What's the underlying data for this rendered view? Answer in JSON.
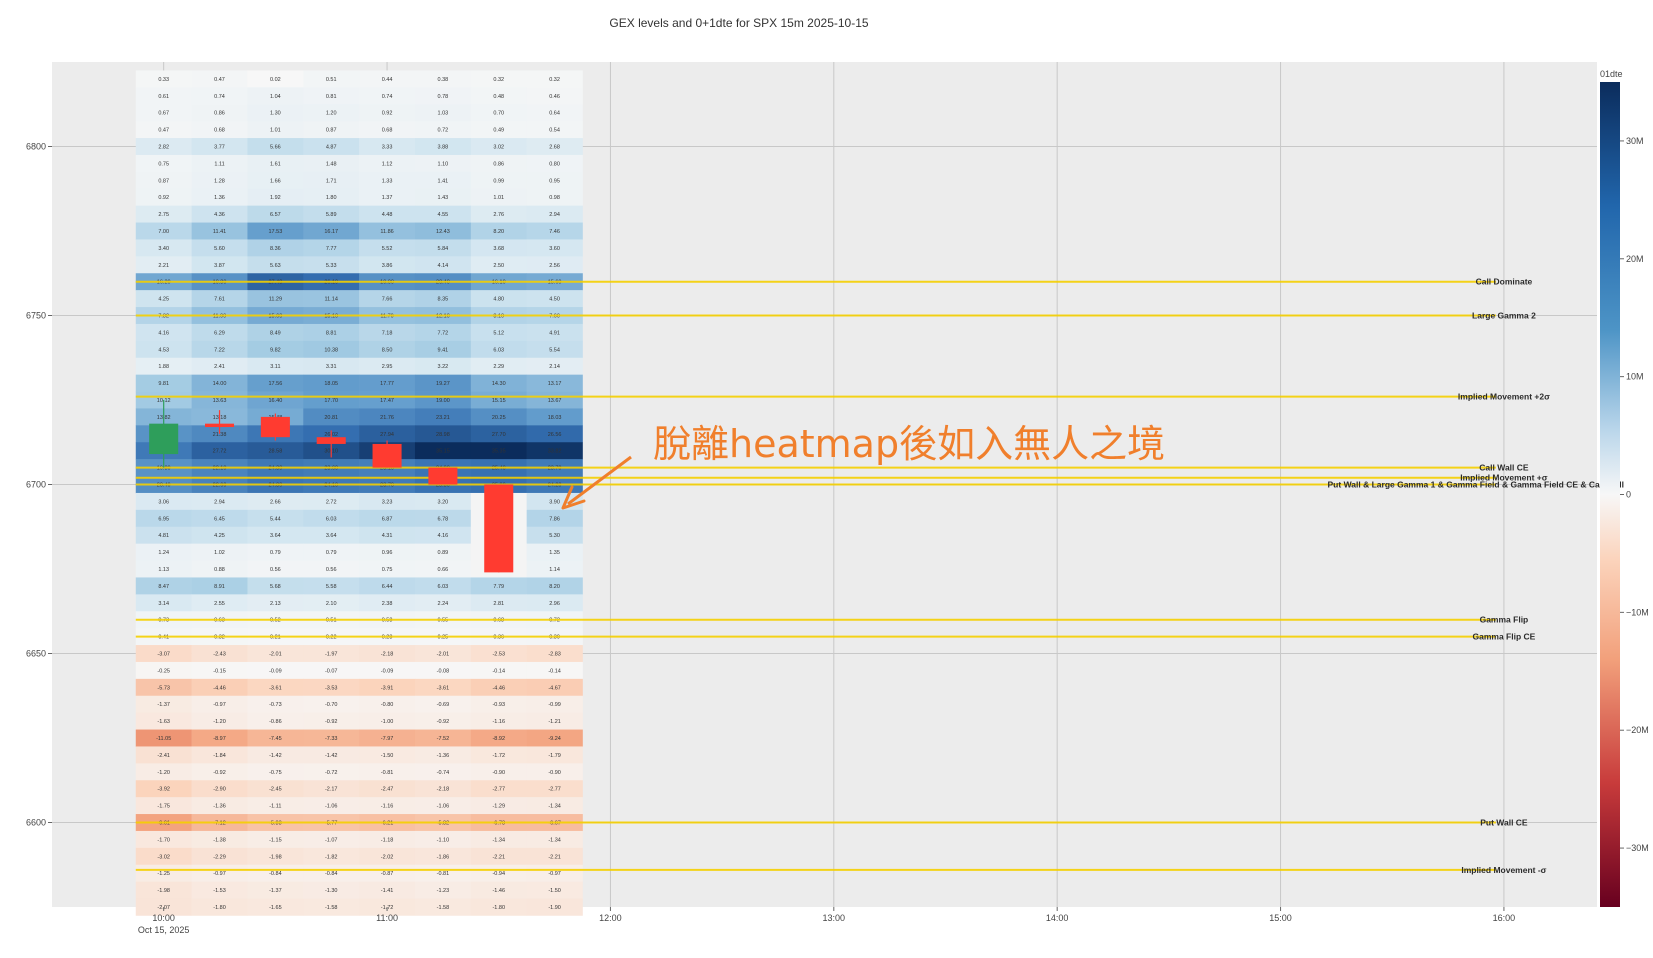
{
  "chart_data": {
    "type": "heatmap",
    "title": "GEX levels and 0+1dte for SPX 15m 2025-10-15",
    "ylim": [
      6575,
      6825
    ],
    "xlim": [
      "09:30",
      "16:25"
    ],
    "x_ticks": [
      {
        "time": "10:00",
        "label": "10:00",
        "sublabel": "Oct 15, 2025"
      },
      {
        "time": "11:00",
        "label": "11:00",
        "sublabel": ""
      },
      {
        "time": "12:00",
        "label": "12:00",
        "sublabel": ""
      },
      {
        "time": "13:00",
        "label": "13:00",
        "sublabel": ""
      },
      {
        "time": "14:00",
        "label": "14:00",
        "sublabel": ""
      },
      {
        "time": "15:00",
        "label": "15:00",
        "sublabel": ""
      },
      {
        "time": "16:00",
        "label": "16:00",
        "sublabel": ""
      }
    ],
    "y_ticks": [
      "6600",
      "6650",
      "6700",
      "6750",
      "6800"
    ],
    "grid": true,
    "colorbar": {
      "title": "01dte",
      "range": [
        -35,
        35
      ],
      "unit": "M",
      "ticks": [
        {
          "value": 30,
          "label": "30M"
        },
        {
          "value": 20,
          "label": "20M"
        },
        {
          "value": 10,
          "label": "10M"
        },
        {
          "value": 0,
          "label": "0"
        },
        {
          "value": -10,
          "label": "−10M"
        },
        {
          "value": -20,
          "label": "−20M"
        },
        {
          "value": -30,
          "label": "−30M"
        }
      ]
    },
    "heatmap_x": [
      "10:00",
      "10:15",
      "10:30",
      "10:45",
      "11:00",
      "11:15",
      "11:30",
      "11:45"
    ],
    "heatmap_rows": [
      {
        "strike": 6820,
        "values": [
          "0.33",
          "0.47",
          "0.02",
          "0.51",
          "0.44",
          "0.38",
          "0.32",
          "0.32"
        ]
      },
      {
        "strike": 6815,
        "values": [
          "0.61",
          "0.74",
          "1.04",
          "0.81",
          "0.74",
          "0.78",
          "0.48",
          "0.46"
        ]
      },
      {
        "strike": 6810,
        "values": [
          "0.67",
          "0.86",
          "1.30",
          "1.20",
          "0.92",
          "1.03",
          "0.70",
          "0.64"
        ]
      },
      {
        "strike": 6805,
        "values": [
          "0.47",
          "0.68",
          "1.01",
          "0.87",
          "0.68",
          "0.72",
          "0.49",
          "0.54"
        ]
      },
      {
        "strike": 6800,
        "values": [
          "2.82",
          "3.77",
          "5.66",
          "4.87",
          "3.33",
          "3.88",
          "3.02",
          "2.68"
        ]
      },
      {
        "strike": 6795,
        "values": [
          "0.75",
          "1.11",
          "1.61",
          "1.48",
          "1.12",
          "1.10",
          "0.86",
          "0.80"
        ]
      },
      {
        "strike": 6790,
        "values": [
          "0.87",
          "1.28",
          "1.66",
          "1.71",
          "1.33",
          "1.41",
          "0.99",
          "0.95"
        ]
      },
      {
        "strike": 6785,
        "values": [
          "0.92",
          "1.36",
          "1.92",
          "1.80",
          "1.37",
          "1.43",
          "1.01",
          "0.98"
        ]
      },
      {
        "strike": 6780,
        "values": [
          "2.75",
          "4.36",
          "6.57",
          "5.89",
          "4.48",
          "4.55",
          "2.76",
          "2.94"
        ]
      },
      {
        "strike": 6775,
        "values": [
          "7.00",
          "11.41",
          "17.53",
          "16.17",
          "11.86",
          "12.43",
          "8.20",
          "7.46"
        ]
      },
      {
        "strike": 6770,
        "values": [
          "3.40",
          "5.60",
          "8.36",
          "7.77",
          "5.52",
          "5.84",
          "3.68",
          "3.60"
        ]
      },
      {
        "strike": 6765,
        "values": [
          "2.21",
          "3.87",
          "5.63",
          "5.33",
          "3.86",
          "4.14",
          "2.50",
          "2.56"
        ]
      },
      {
        "strike": 6760,
        "values": [
          "16.20",
          "19.80",
          "27.40",
          "26.10",
          "19.90",
          "20.40",
          "16.10",
          "15.60"
        ]
      },
      {
        "strike": 6755,
        "values": [
          "4.25",
          "7.61",
          "11.29",
          "11.14",
          "7.66",
          "8.35",
          "4.80",
          "4.50"
        ]
      },
      {
        "strike": 6750,
        "values": [
          "7.82",
          "11.90",
          "15.60",
          "15.10",
          "11.70",
          "12.10",
          "8.10",
          "7.60"
        ]
      },
      {
        "strike": 6745,
        "values": [
          "4.16",
          "6.29",
          "8.49",
          "8.81",
          "7.18",
          "7.72",
          "5.12",
          "4.91"
        ]
      },
      {
        "strike": 6740,
        "values": [
          "4.53",
          "7.22",
          "9.82",
          "10.38",
          "8.50",
          "9.41",
          "6.03",
          "5.54"
        ]
      },
      {
        "strike": 6735,
        "values": [
          "1.88",
          "2.41",
          "3.11",
          "3.31",
          "2.95",
          "3.22",
          "2.29",
          "2.14"
        ]
      },
      {
        "strike": 6730,
        "values": [
          "9.81",
          "14.00",
          "17.56",
          "18.05",
          "17.77",
          "19.27",
          "14.30",
          "13.17"
        ]
      },
      {
        "strike": 6725,
        "values": [
          "10.12",
          "13.63",
          "16.40",
          "17.70",
          "17.47",
          "19.00",
          "15.15",
          "13.67"
        ]
      },
      {
        "strike": 6720,
        "values": [
          "13.82",
          "13.18",
          "15.48",
          "20.81",
          "21.76",
          "23.21",
          "20.25",
          "18.03"
        ]
      },
      {
        "strike": 6715,
        "values": [
          "19.60",
          "21.38",
          "24.48",
          "26.02",
          "27.94",
          "28.98",
          "27.70",
          "26.56"
        ]
      },
      {
        "strike": 6710,
        "values": [
          "24.10",
          "27.72",
          "28.58",
          "30.10",
          "32.40",
          "35.15",
          "35.35",
          "33.82"
        ]
      },
      {
        "strike": 6705,
        "values": [
          "19.80",
          "22.10",
          "24.30",
          "23.60",
          "23.10",
          "24.90",
          "25.40",
          "23.70"
        ]
      },
      {
        "strike": 6700,
        "values": [
          "20.40",
          "22.60",
          "24.80",
          "24.10",
          "23.70",
          "25.30",
          "25.90",
          "24.20"
        ]
      },
      {
        "strike": 6695,
        "values": [
          "3.06",
          "2.94",
          "2.66",
          "2.72",
          "3.23",
          "3.20",
          "",
          "3.90"
        ]
      },
      {
        "strike": 6690,
        "values": [
          "6.95",
          "6.45",
          "5.44",
          "6.03",
          "6.87",
          "6.78",
          "",
          "7.86"
        ]
      },
      {
        "strike": 6685,
        "values": [
          "4.81",
          "4.25",
          "3.64",
          "3.64",
          "4.31",
          "4.16",
          "",
          "5.30"
        ]
      },
      {
        "strike": 6680,
        "values": [
          "1.24",
          "1.02",
          "0.79",
          "0.79",
          "0.96",
          "0.89",
          "",
          "1.35"
        ]
      },
      {
        "strike": 6675,
        "values": [
          "1.13",
          "0.88",
          "0.56",
          "0.56",
          "0.75",
          "0.66",
          "",
          "1.14"
        ]
      },
      {
        "strike": 6670,
        "values": [
          "8.47",
          "8.91",
          "5.68",
          "5.58",
          "6.44",
          "6.03",
          "7.79",
          "8.20"
        ]
      },
      {
        "strike": 6665,
        "values": [
          "3.14",
          "2.55",
          "2.13",
          "2.10",
          "2.38",
          "2.24",
          "2.81",
          "2.96"
        ]
      },
      {
        "strike": 6660,
        "values": [
          "0.73",
          "0.63",
          "0.52",
          "0.51",
          "0.58",
          "0.55",
          "0.68",
          "0.72"
        ]
      },
      {
        "strike": 6655,
        "values": [
          "0.41",
          "0.32",
          "0.21",
          "0.22",
          "0.28",
          "0.25",
          "0.36",
          "0.39"
        ]
      },
      {
        "strike": 6650,
        "values": [
          "-3.07",
          "-2.43",
          "-2.01",
          "-1.97",
          "-2.18",
          "-2.01",
          "-2.53",
          "-2.83"
        ]
      },
      {
        "strike": 6645,
        "values": [
          "-0.25",
          "-0.15",
          "-0.09",
          "-0.07",
          "-0.09",
          "-0.08",
          "-0.14",
          "-0.14"
        ]
      },
      {
        "strike": 6640,
        "values": [
          "-5.73",
          "-4.46",
          "-3.61",
          "-3.53",
          "-3.91",
          "-3.61",
          "-4.46",
          "-4.67"
        ]
      },
      {
        "strike": 6635,
        "values": [
          "-1.37",
          "-0.97",
          "-0.73",
          "-0.70",
          "-0.80",
          "-0.69",
          "-0.93",
          "-0.99"
        ]
      },
      {
        "strike": 6630,
        "values": [
          "-1.63",
          "-1.20",
          "-0.86",
          "-0.92",
          "-1.00",
          "-0.92",
          "-1.16",
          "-1.21"
        ]
      },
      {
        "strike": 6625,
        "values": [
          "-11.05",
          "-8.97",
          "-7.45",
          "-7.33",
          "-7.97",
          "-7.52",
          "-8.92",
          "-9.24"
        ]
      },
      {
        "strike": 6620,
        "values": [
          "-2.41",
          "-1.84",
          "-1.42",
          "-1.42",
          "-1.50",
          "-1.36",
          "-1.72",
          "-1.79"
        ]
      },
      {
        "strike": 6615,
        "values": [
          "-1.20",
          "-0.92",
          "-0.75",
          "-0.72",
          "-0.81",
          "-0.74",
          "-0.90",
          "-0.90"
        ]
      },
      {
        "strike": 6610,
        "values": [
          "-3.92",
          "-2.90",
          "-2.45",
          "-2.17",
          "-2.47",
          "-2.18",
          "-2.77",
          "-2.77"
        ]
      },
      {
        "strike": 6605,
        "values": [
          "-1.75",
          "-1.36",
          "-1.11",
          "-1.06",
          "-1.16",
          "-1.06",
          "-1.29",
          "-1.34"
        ]
      },
      {
        "strike": 6600,
        "values": [
          "-9.61",
          "-7.12",
          "-5.83",
          "-5.77",
          "-6.21",
          "-5.82",
          "-6.73",
          "-6.67"
        ]
      },
      {
        "strike": 6595,
        "values": [
          "-1.70",
          "-1.38",
          "-1.15",
          "-1.07",
          "-1.18",
          "-1.10",
          "-1.34",
          "-1.34"
        ]
      },
      {
        "strike": 6590,
        "values": [
          "-3.02",
          "-2.29",
          "-1.98",
          "-1.82",
          "-2.02",
          "-1.86",
          "-2.21",
          "-2.21"
        ]
      },
      {
        "strike": 6585,
        "values": [
          "-1.25",
          "-0.97",
          "-0.84",
          "-0.84",
          "-0.87",
          "-0.81",
          "-0.94",
          "-0.97"
        ]
      },
      {
        "strike": 6580,
        "values": [
          "-1.98",
          "-1.53",
          "-1.37",
          "-1.30",
          "-1.41",
          "-1.23",
          "-1.46",
          "-1.50"
        ]
      },
      {
        "strike": 6575,
        "values": [
          "-2.07",
          "-1.80",
          "-1.65",
          "-1.58",
          "-1.72",
          "-1.58",
          "-1.80",
          "-1.90"
        ]
      }
    ],
    "candles": [
      {
        "time": "10:00",
        "open": 6709,
        "high": 6725,
        "low": 6705,
        "close": 6718
      },
      {
        "time": "10:15",
        "open": 6718,
        "high": 6722,
        "low": 6715,
        "close": 6717
      },
      {
        "time": "10:30",
        "open": 6720,
        "high": 6721,
        "low": 6713,
        "close": 6714
      },
      {
        "time": "10:45",
        "open": 6714,
        "high": 6716,
        "low": 6708,
        "close": 6712
      },
      {
        "time": "11:00",
        "open": 6712,
        "high": 6713,
        "low": 6705,
        "close": 6705
      },
      {
        "time": "11:15",
        "open": 6705,
        "high": 6705,
        "low": 6700,
        "close": 6700
      },
      {
        "time": "11:30",
        "open": 6700,
        "high": 6700,
        "low": 6674,
        "close": 6674
      }
    ],
    "levels": [
      {
        "name": "Call Dominate",
        "value": 6760
      },
      {
        "name": "Large Gamma 2",
        "value": 6750
      },
      {
        "name": "Implied Movement +2σ",
        "value": 6726
      },
      {
        "name": "Call Wall CE",
        "value": 6705
      },
      {
        "name": "Implied Movement +σ",
        "value": 6702
      },
      {
        "name": "Put Wall & Large Gamma 1 & Gamma Field & Gamma Field CE & Call Wall",
        "value": 6700
      },
      {
        "name": "Gamma Flip",
        "value": 6660
      },
      {
        "name": "Gamma Flip CE",
        "value": 6655
      },
      {
        "name": "Put Wall CE",
        "value": 6600
      },
      {
        "name": "Implied Movement -σ",
        "value": 6586
      }
    ],
    "annotation": {
      "text": "脫離heatmap後如入無人之境",
      "color": "#f07f2c"
    },
    "colors": {
      "plot_bg": "#ececec",
      "level_line": "#f5d000",
      "candle_up": "#2e9e5b",
      "candle_down": "#ff3b30"
    }
  }
}
